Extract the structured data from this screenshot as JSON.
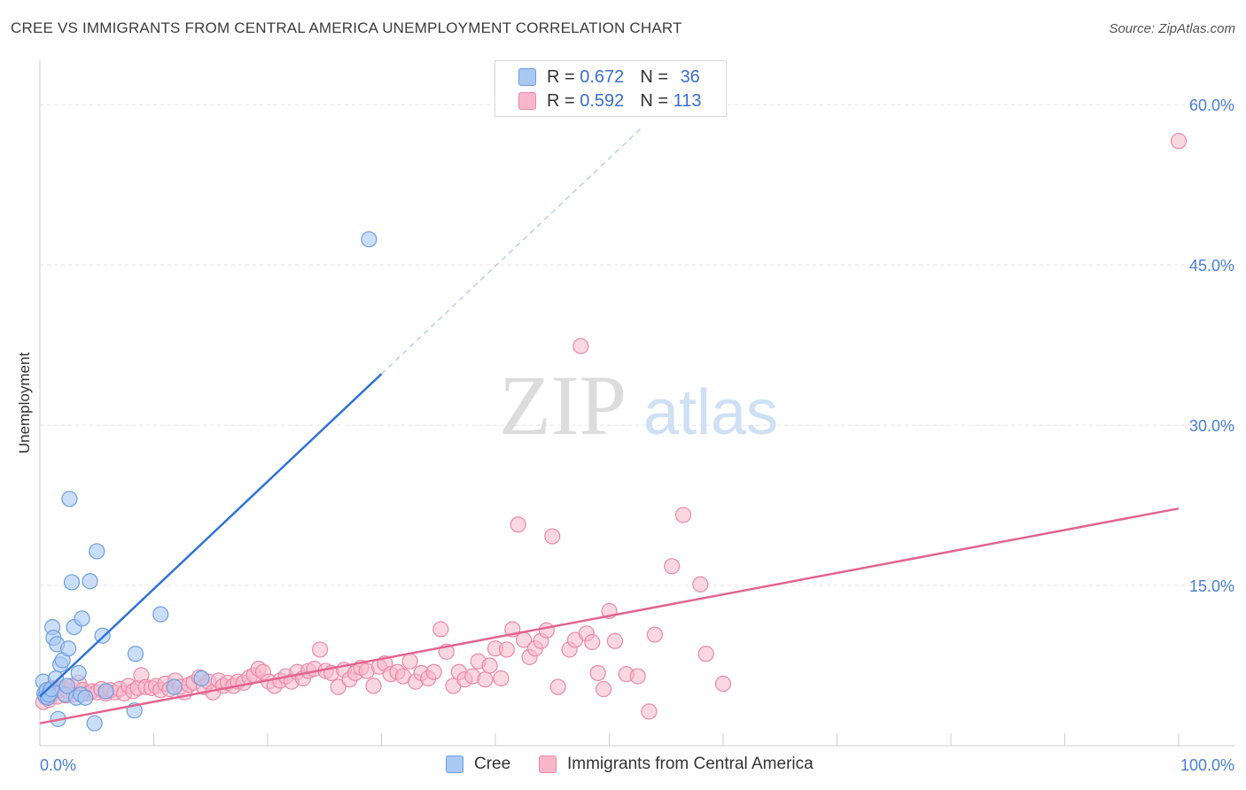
{
  "title": "CREE VS IMMIGRANTS FROM CENTRAL AMERICA UNEMPLOYMENT CORRELATION CHART",
  "source": "Source: ZipAtlas.com",
  "watermark": {
    "zip": "ZIP",
    "atlas": "atlas"
  },
  "legend": {
    "r_label": "R =",
    "n_label": "N =",
    "rows": [
      {
        "r": "0.672",
        "n": "36"
      },
      {
        "r": "0.592",
        "n": "113"
      }
    ]
  },
  "bottom_legend": [
    "Cree",
    "Immigrants from Central America"
  ],
  "colors": {
    "cree_fill": "#a9c8f2",
    "cree_stroke": "#6e9fe0",
    "cree_line": "#2f73d6",
    "imm_fill": "#f7b6ca",
    "imm_stroke": "#ea8aa8",
    "imm_line": "#e2648f",
    "tick_label": "#4a7fd1",
    "grid": "#e3e3e3"
  },
  "chart_data": {
    "type": "scatter",
    "title": "CREE VS IMMIGRANTS FROM CENTRAL AMERICA UNEMPLOYMENT CORRELATION CHART",
    "xlabel": "",
    "ylabel": "Unemployment",
    "xlim": [
      0,
      100
    ],
    "ylim": [
      0,
      63
    ],
    "x_tick_labels": [
      "0.0%",
      "100.0%"
    ],
    "y_ticks": [
      15,
      30,
      45,
      60
    ],
    "y_tick_labels": [
      "15.0%",
      "30.0%",
      "45.0%",
      "60.0%"
    ],
    "grid": true,
    "series": [
      {
        "name": "Cree",
        "r": 0.672,
        "n": 36,
        "points": [
          [
            0.3,
            6.0
          ],
          [
            0.4,
            4.9
          ],
          [
            0.5,
            4.6
          ],
          [
            0.6,
            5.2
          ],
          [
            0.7,
            4.5
          ],
          [
            0.8,
            4.8
          ],
          [
            1.0,
            5.3
          ],
          [
            1.1,
            11.1
          ],
          [
            1.2,
            10.1
          ],
          [
            1.4,
            6.3
          ],
          [
            1.5,
            9.5
          ],
          [
            1.6,
            2.5
          ],
          [
            1.8,
            7.6
          ],
          [
            2.0,
            8.0
          ],
          [
            2.2,
            4.8
          ],
          [
            2.4,
            5.6
          ],
          [
            2.5,
            9.1
          ],
          [
            2.6,
            23.1
          ],
          [
            2.8,
            15.3
          ],
          [
            3.0,
            11.1
          ],
          [
            3.2,
            4.5
          ],
          [
            3.4,
            6.8
          ],
          [
            3.6,
            4.8
          ],
          [
            3.7,
            11.9
          ],
          [
            4.4,
            15.4
          ],
          [
            4.8,
            2.1
          ],
          [
            5.0,
            18.2
          ],
          [
            5.5,
            10.3
          ],
          [
            5.8,
            5.1
          ],
          [
            8.3,
            3.3
          ],
          [
            8.4,
            8.6
          ],
          [
            10.6,
            12.3
          ],
          [
            11.8,
            5.5
          ],
          [
            14.2,
            6.3
          ],
          [
            28.9,
            47.4
          ],
          [
            4.0,
            4.5
          ]
        ],
        "trendline": {
          "x": [
            0,
            30
          ],
          "y": [
            4.6,
            34.8
          ]
        },
        "trendline_extended": {
          "x": [
            30,
            53
          ],
          "y": [
            34.8,
            58.0
          ]
        }
      },
      {
        "name": "Immigrants from Central America",
        "r": 0.592,
        "n": 113,
        "points": [
          [
            0.3,
            4.1
          ],
          [
            0.5,
            4.6
          ],
          [
            0.6,
            5.1
          ],
          [
            0.8,
            4.3
          ],
          [
            1.0,
            5.4
          ],
          [
            1.2,
            4.9
          ],
          [
            1.5,
            4.6
          ],
          [
            1.7,
            5.2
          ],
          [
            2.0,
            5.4
          ],
          [
            2.3,
            4.7
          ],
          [
            2.5,
            5.1
          ],
          [
            2.8,
            5.6
          ],
          [
            3.0,
            4.8
          ],
          [
            3.4,
            5.9
          ],
          [
            3.8,
            5.2
          ],
          [
            4.2,
            4.9
          ],
          [
            4.6,
            5.1
          ],
          [
            5.0,
            5.0
          ],
          [
            5.4,
            5.3
          ],
          [
            5.8,
            4.9
          ],
          [
            6.2,
            5.2
          ],
          [
            6.6,
            5.0
          ],
          [
            7.0,
            5.3
          ],
          [
            7.4,
            4.9
          ],
          [
            7.8,
            5.6
          ],
          [
            8.2,
            5.1
          ],
          [
            8.6,
            5.4
          ],
          [
            8.9,
            6.6
          ],
          [
            9.3,
            5.5
          ],
          [
            9.8,
            5.4
          ],
          [
            10.2,
            5.6
          ],
          [
            10.6,
            5.2
          ],
          [
            11.0,
            5.8
          ],
          [
            11.4,
            5.3
          ],
          [
            11.9,
            6.1
          ],
          [
            12.3,
            5.5
          ],
          [
            12.7,
            5.0
          ],
          [
            13.1,
            5.7
          ],
          [
            13.5,
            5.9
          ],
          [
            14.0,
            6.4
          ],
          [
            14.4,
            5.5
          ],
          [
            14.8,
            6.0
          ],
          [
            15.2,
            5.0
          ],
          [
            15.7,
            6.1
          ],
          [
            16.1,
            5.6
          ],
          [
            16.5,
            5.9
          ],
          [
            17.0,
            5.6
          ],
          [
            17.4,
            6.0
          ],
          [
            17.9,
            5.9
          ],
          [
            18.4,
            6.4
          ],
          [
            18.8,
            6.6
          ],
          [
            19.2,
            7.2
          ],
          [
            19.6,
            6.9
          ],
          [
            20.1,
            6.0
          ],
          [
            20.6,
            5.6
          ],
          [
            21.1,
            6.1
          ],
          [
            21.6,
            6.5
          ],
          [
            22.1,
            6.0
          ],
          [
            22.6,
            6.9
          ],
          [
            23.1,
            6.3
          ],
          [
            23.6,
            7.0
          ],
          [
            24.1,
            7.2
          ],
          [
            24.6,
            9.0
          ],
          [
            25.1,
            7.0
          ],
          [
            25.6,
            6.8
          ],
          [
            26.2,
            5.5
          ],
          [
            26.7,
            7.1
          ],
          [
            27.2,
            6.2
          ],
          [
            27.7,
            6.8
          ],
          [
            28.2,
            7.3
          ],
          [
            28.7,
            7.0
          ],
          [
            29.3,
            5.6
          ],
          [
            29.8,
            7.4
          ],
          [
            30.3,
            7.7
          ],
          [
            30.8,
            6.7
          ],
          [
            31.4,
            6.9
          ],
          [
            31.9,
            6.5
          ],
          [
            32.5,
            7.9
          ],
          [
            33.0,
            6.0
          ],
          [
            33.5,
            6.8
          ],
          [
            34.1,
            6.3
          ],
          [
            34.6,
            6.9
          ],
          [
            35.2,
            10.9
          ],
          [
            35.7,
            8.8
          ],
          [
            36.3,
            5.6
          ],
          [
            36.8,
            6.9
          ],
          [
            37.3,
            6.2
          ],
          [
            38.0,
            6.5
          ],
          [
            38.5,
            7.9
          ],
          [
            39.1,
            6.2
          ],
          [
            39.5,
            7.5
          ],
          [
            40.0,
            9.1
          ],
          [
            40.5,
            6.3
          ],
          [
            41.0,
            9.0
          ],
          [
            41.5,
            10.9
          ],
          [
            42.0,
            20.7
          ],
          [
            42.5,
            9.9
          ],
          [
            43.0,
            8.3
          ],
          [
            43.5,
            9.1
          ],
          [
            44.0,
            9.8
          ],
          [
            44.5,
            10.8
          ],
          [
            45.0,
            19.6
          ],
          [
            45.5,
            5.5
          ],
          [
            46.5,
            9.0
          ],
          [
            47.0,
            9.9
          ],
          [
            47.5,
            37.4
          ],
          [
            48.0,
            10.5
          ],
          [
            48.5,
            9.7
          ],
          [
            49.0,
            6.8
          ],
          [
            49.5,
            5.3
          ],
          [
            50.0,
            12.6
          ],
          [
            50.5,
            9.8
          ],
          [
            51.5,
            6.7
          ],
          [
            52.5,
            6.5
          ],
          [
            53.5,
            3.2
          ],
          [
            54.0,
            10.4
          ],
          [
            55.5,
            16.8
          ],
          [
            56.5,
            21.6
          ],
          [
            58.5,
            8.6
          ],
          [
            58.0,
            15.1
          ],
          [
            60.0,
            5.8
          ],
          [
            100.0,
            56.6
          ]
        ],
        "trendline": {
          "x": [
            0,
            100
          ],
          "y": [
            2.1,
            22.2
          ]
        }
      }
    ]
  }
}
